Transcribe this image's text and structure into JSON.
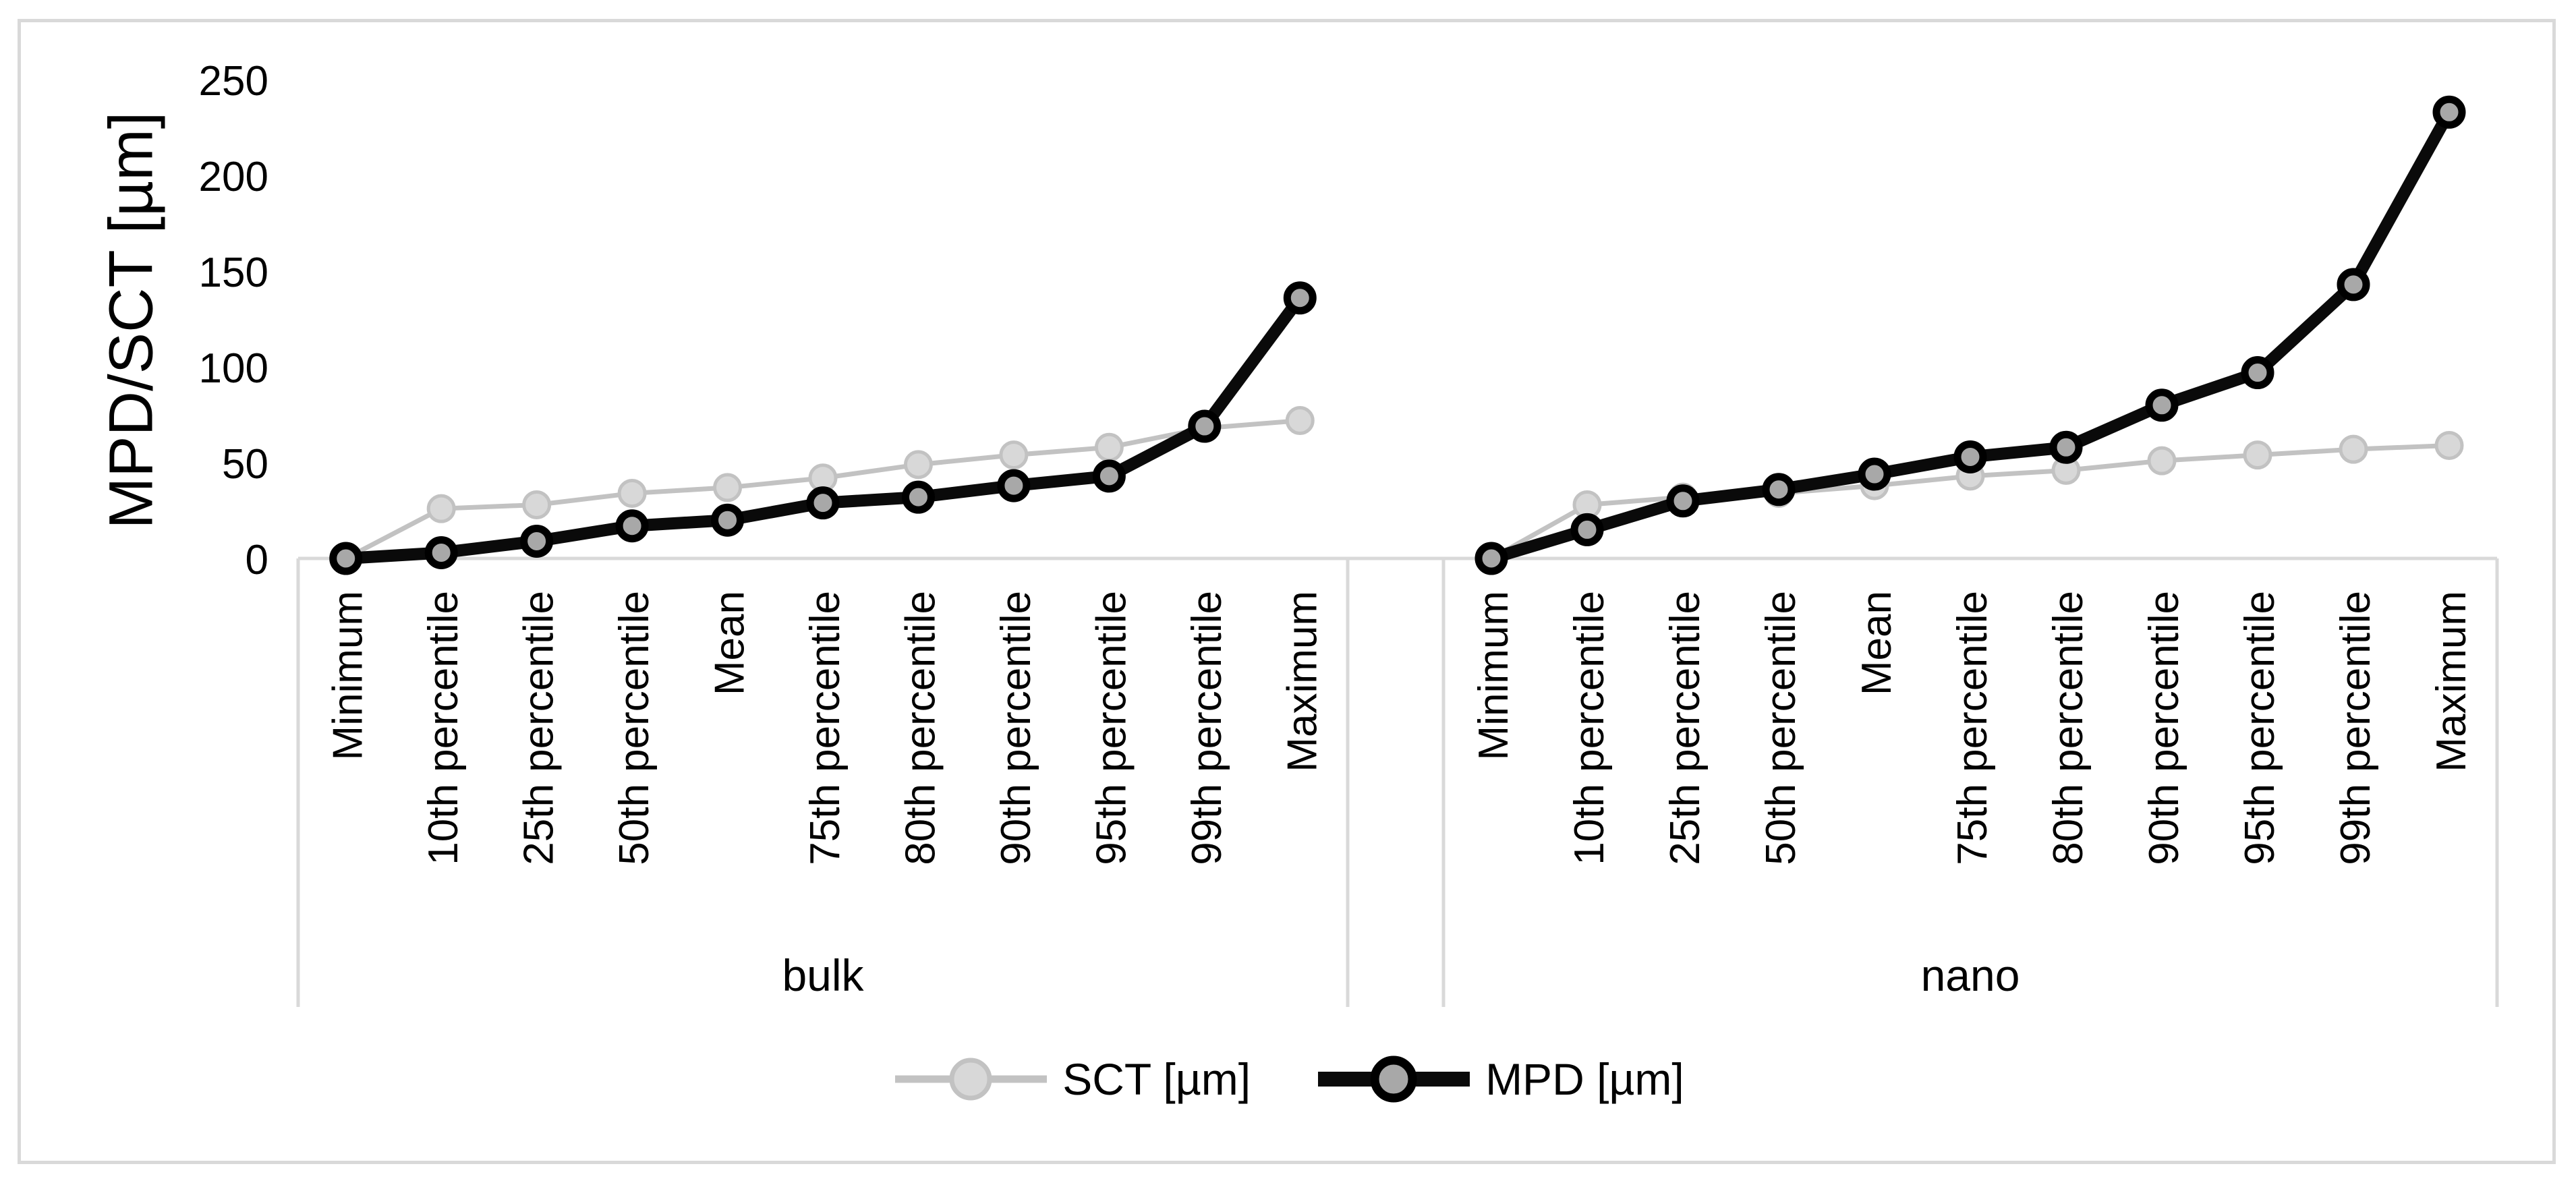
{
  "chart_data": {
    "type": "line",
    "title": "",
    "ylabel": "MPD/SCT [µm]",
    "xlabel": "",
    "ylim": [
      0,
      250
    ],
    "yticks": [
      0,
      50,
      100,
      150,
      200,
      250
    ],
    "grid": false,
    "legend_position": "bottom",
    "categories": [
      "Minimum",
      "10th percentile",
      "25th percentile",
      "50th percentile",
      "Mean",
      "75th percentile",
      "80th percentile",
      "90th percentile",
      "95th percentile",
      "99th percentile",
      "Maximum"
    ],
    "panels": [
      {
        "label": "bulk",
        "series": [
          {
            "name": "SCT [µm]",
            "values": [
              0,
              26,
              28,
              34,
              37,
              42,
              49,
              54,
              58,
              68,
              72
            ]
          },
          {
            "name": "MPD [µm]",
            "values": [
              0,
              3,
              9,
              17,
              20,
              29,
              32,
              38,
              43,
              69,
              136
            ]
          }
        ]
      },
      {
        "label": "nano",
        "series": [
          {
            "name": "SCT [µm]",
            "values": [
              0,
              28,
              32,
              34,
              38,
              43,
              46,
              51,
              54,
              57,
              59
            ]
          },
          {
            "name": "MPD [µm]",
            "values": [
              0,
              15,
              30,
              36,
              44,
              53,
              58,
              80,
              97,
              143,
              233
            ]
          }
        ]
      }
    ],
    "legend": [
      {
        "label": "SCT [µm]",
        "line_color": "#c2c2c2",
        "marker_fill": "#d8d8d8",
        "marker_stroke": "#c2c2c2"
      },
      {
        "label": "MPD [µm]",
        "line_color": "#0a0a0a",
        "marker_fill": "#a8a8a8",
        "marker_stroke": "#000000"
      }
    ],
    "axis_color": "#d9d9d9",
    "text_color": "#000000"
  }
}
